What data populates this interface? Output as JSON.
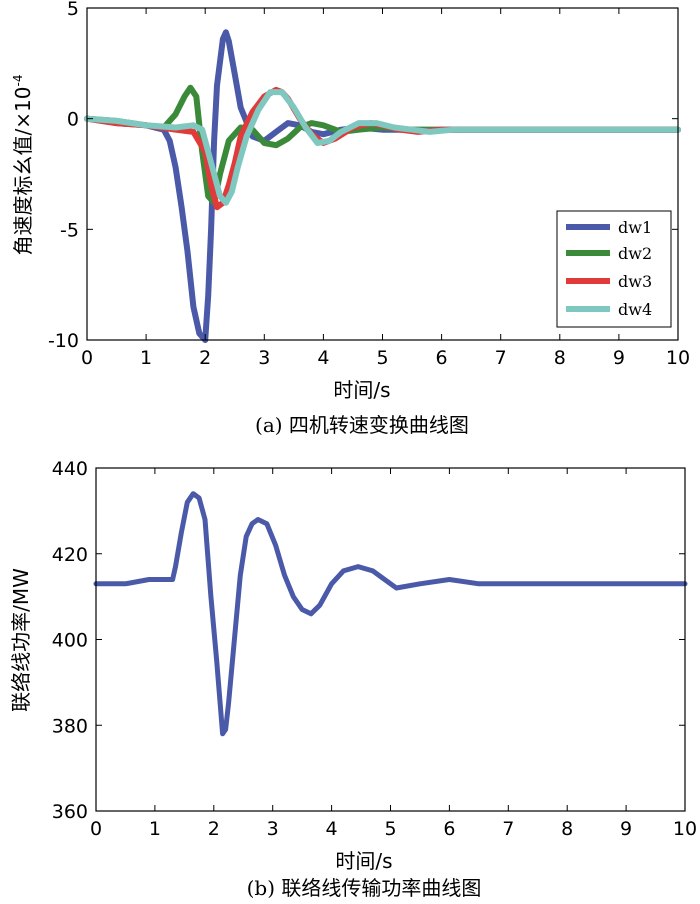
{
  "chart_data": [
    {
      "type": "line",
      "caption": "(a) 四机转速变换曲线图",
      "xlabel": "时间/s",
      "ylabel": "角速度标幺值/×10",
      "ylabel_exp": "-4",
      "xlim": [
        0,
        10
      ],
      "ylim": [
        -10,
        5
      ],
      "xticks": [
        "0",
        "1",
        "2",
        "3",
        "4",
        "5",
        "6",
        "7",
        "8",
        "9",
        "10"
      ],
      "yticks": [
        "5",
        "0",
        "-5",
        "-10"
      ],
      "legend_position": "bottom-right",
      "series": [
        {
          "name": "dw1",
          "color": "#4a5aa8",
          "x": [
            0,
            0.5,
            1.0,
            1.3,
            1.4,
            1.5,
            1.6,
            1.7,
            1.8,
            1.9,
            2.0,
            2.05,
            2.1,
            2.15,
            2.2,
            2.3,
            2.35,
            2.4,
            2.5,
            2.6,
            2.8,
            3.0,
            3.2,
            3.4,
            3.6,
            3.8,
            4.0,
            4.3,
            4.6,
            5.0,
            5.5,
            6,
            7,
            8,
            9,
            10
          ],
          "y": [
            0,
            -0.2,
            -0.3,
            -0.5,
            -1.0,
            -2.2,
            -4,
            -6,
            -8.5,
            -9.7,
            -10,
            -8,
            -5,
            -1,
            1.5,
            3.6,
            3.9,
            3.5,
            2,
            0.5,
            -0.8,
            -1.0,
            -0.6,
            -0.2,
            -0.3,
            -0.6,
            -0.7,
            -0.5,
            -0.4,
            -0.5,
            -0.5,
            -0.5,
            -0.5,
            -0.5,
            -0.5,
            -0.5
          ]
        },
        {
          "name": "dw2",
          "color": "#3a8a3a",
          "x": [
            0,
            0.5,
            1.0,
            1.3,
            1.5,
            1.65,
            1.75,
            1.85,
            1.95,
            2.05,
            2.15,
            2.25,
            2.4,
            2.6,
            2.8,
            3.0,
            3.2,
            3.4,
            3.6,
            3.8,
            4.0,
            4.3,
            4.6,
            5.0,
            5.5,
            6,
            7,
            8,
            9,
            10
          ],
          "y": [
            0,
            -0.1,
            -0.3,
            -0.4,
            0.2,
            1.0,
            1.4,
            1.0,
            -1.5,
            -3.5,
            -3.8,
            -2.5,
            -1,
            -0.4,
            -0.5,
            -1.1,
            -1.2,
            -0.9,
            -0.4,
            -0.2,
            -0.3,
            -0.6,
            -0.5,
            -0.4,
            -0.5,
            -0.5,
            -0.5,
            -0.5,
            -0.5,
            -0.5
          ]
        },
        {
          "name": "dw3",
          "color": "#e03a3a",
          "x": [
            0,
            0.5,
            1.0,
            1.5,
            1.8,
            2.0,
            2.1,
            2.2,
            2.3,
            2.4,
            2.5,
            2.6,
            2.8,
            3.0,
            3.2,
            3.3,
            3.4,
            3.6,
            3.8,
            4.0,
            4.2,
            4.5,
            4.8,
            5.0,
            5.3,
            5.6,
            6.0,
            6.5,
            7,
            8,
            9,
            10
          ],
          "y": [
            0,
            -0.2,
            -0.3,
            -0.5,
            -0.6,
            -1.5,
            -3,
            -4,
            -3.8,
            -3,
            -2,
            -0.8,
            0.3,
            1.0,
            1.3,
            1.2,
            0.9,
            0,
            -0.7,
            -1.1,
            -0.9,
            -0.4,
            -0.2,
            -0.3,
            -0.5,
            -0.6,
            -0.5,
            -0.5,
            -0.5,
            -0.5,
            -0.5,
            -0.5
          ]
        },
        {
          "name": "dw4",
          "color": "#7ec8c0",
          "x": [
            0,
            0.5,
            1.0,
            1.5,
            1.8,
            1.95,
            2.05,
            2.15,
            2.25,
            2.35,
            2.45,
            2.55,
            2.7,
            2.9,
            3.1,
            3.3,
            3.5,
            3.7,
            3.9,
            4.1,
            4.3,
            4.6,
            4.9,
            5.2,
            5.5,
            5.8,
            6.2,
            6.6,
            7,
            8,
            9,
            10
          ],
          "y": [
            0,
            -0.1,
            -0.3,
            -0.4,
            -0.3,
            -0.5,
            -1.5,
            -2.5,
            -3.5,
            -3.8,
            -3.3,
            -2.2,
            -0.8,
            0.4,
            1.2,
            1.2,
            0.5,
            -0.4,
            -1.1,
            -1.0,
            -0.6,
            -0.2,
            -0.2,
            -0.4,
            -0.5,
            -0.6,
            -0.5,
            -0.5,
            -0.5,
            -0.5,
            -0.5,
            -0.5
          ]
        }
      ]
    },
    {
      "type": "line",
      "caption": "(b) 联络线传输功率曲线图",
      "xlabel": "时间/s",
      "ylabel": "联络线功率/MW",
      "xlim": [
        0,
        10
      ],
      "ylim": [
        360,
        440
      ],
      "xticks": [
        "0",
        "1",
        "2",
        "3",
        "4",
        "5",
        "6",
        "7",
        "8",
        "9",
        "10"
      ],
      "yticks": [
        "440",
        "420",
        "400",
        "380",
        "360"
      ],
      "series": [
        {
          "color": "#4a5aa8",
          "x": [
            0,
            0.5,
            0.9,
            1.3,
            1.35,
            1.45,
            1.55,
            1.65,
            1.75,
            1.85,
            1.95,
            2.05,
            2.15,
            2.2,
            2.25,
            2.35,
            2.45,
            2.55,
            2.65,
            2.75,
            2.9,
            3.05,
            3.2,
            3.35,
            3.5,
            3.65,
            3.8,
            4.0,
            4.2,
            4.45,
            4.7,
            4.9,
            5.1,
            5.5,
            6.0,
            6.5,
            7,
            8,
            9,
            10
          ],
          "y": [
            413,
            413,
            414,
            414,
            417,
            425,
            432,
            434,
            433,
            428,
            410,
            395,
            378,
            379,
            385,
            400,
            415,
            424,
            427,
            428,
            427,
            422,
            415,
            410,
            407,
            406,
            408,
            413,
            416,
            417,
            416,
            414,
            412,
            413,
            414,
            413,
            413,
            413,
            413,
            413
          ]
        }
      ]
    }
  ]
}
